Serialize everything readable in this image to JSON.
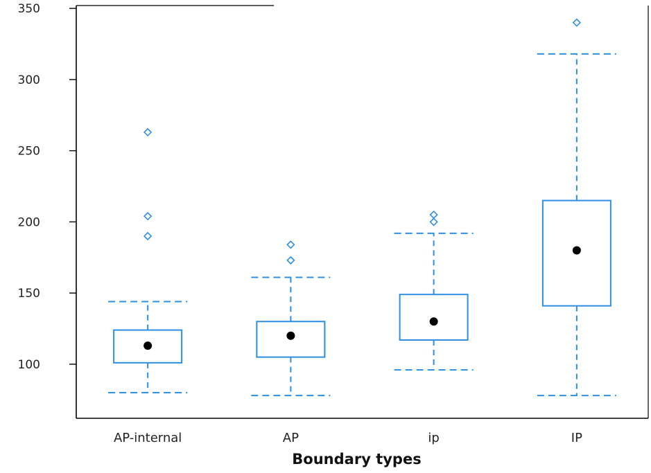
{
  "chart_data": {
    "type": "box",
    "title": "",
    "xlabel": "Boundary types",
    "ylabel": "",
    "ylim": [
      62,
      352
    ],
    "yticks": [
      100,
      150,
      200,
      250,
      300,
      350
    ],
    "yticklabels": [
      "100",
      "150",
      "200",
      "250",
      "300",
      "350"
    ],
    "grid": false,
    "legend": "none",
    "colors": {
      "box": "#2e8ee0",
      "mean": "#000000",
      "axis": "#000000"
    },
    "categories": [
      "AP-internal",
      "AP",
      "ip",
      "IP"
    ],
    "boxes": [
      {
        "category": "AP-internal",
        "whisker_low": 80,
        "q1": 101,
        "q3": 124,
        "whisker_high": 144,
        "mean": 113,
        "outliers": [
          190,
          204,
          263
        ]
      },
      {
        "category": "AP",
        "whisker_low": 78,
        "q1": 105,
        "q3": 130,
        "whisker_high": 161,
        "mean": 120,
        "outliers": [
          173,
          184
        ]
      },
      {
        "category": "ip",
        "whisker_low": 96,
        "q1": 117,
        "q3": 149,
        "whisker_high": 192,
        "mean": 130,
        "outliers": [
          200,
          205
        ]
      },
      {
        "category": "IP",
        "whisker_low": 78,
        "q1": 141,
        "q3": 215,
        "whisker_high": 318,
        "mean": 180,
        "outliers": [
          340
        ]
      }
    ]
  }
}
